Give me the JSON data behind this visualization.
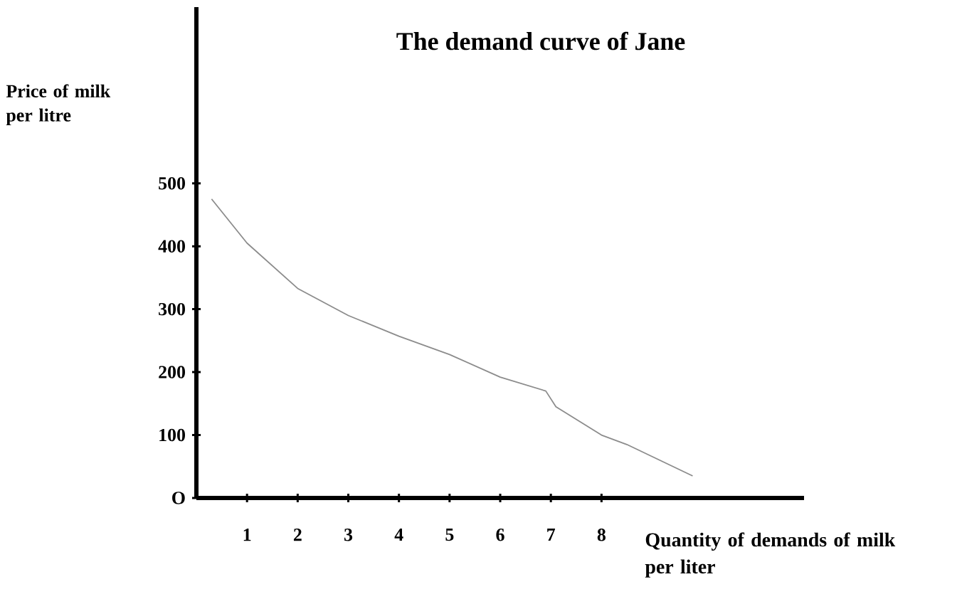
{
  "chart_data": {
    "type": "line",
    "title": "The demand curve of Jane",
    "xlabel": "Quantity of demands of milk per liter",
    "ylabel": "Price of milk per litre",
    "x": [
      0.3,
      1,
      2,
      3,
      4,
      5,
      6,
      6.9,
      7.1,
      8,
      8.5,
      9.8
    ],
    "series": [
      {
        "color": "#8c8c8c",
        "values": [
          475,
          405,
          333,
          290,
          257,
          228,
          192,
          170,
          145,
          100,
          85,
          35
        ]
      }
    ],
    "xlim": [
      0,
      12
    ],
    "ylim": [
      0,
      780
    ],
    "xticks": [
      1,
      2,
      3,
      4,
      5,
      6,
      7,
      8
    ],
    "yticks": [
      {
        "value": 0,
        "label": "O"
      },
      100,
      200,
      300,
      400,
      500
    ],
    "grid": false,
    "legend": false
  }
}
